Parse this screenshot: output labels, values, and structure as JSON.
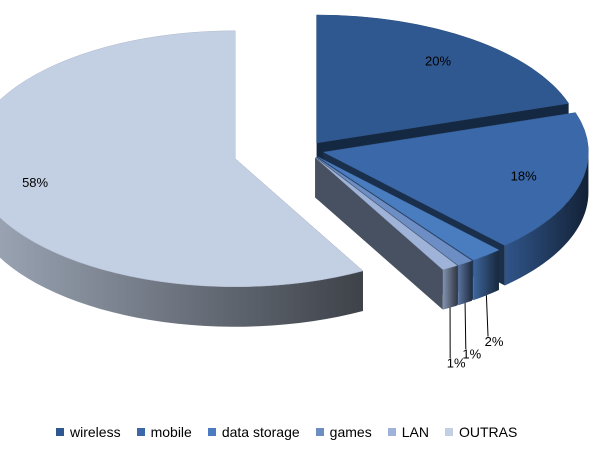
{
  "chart_data": {
    "type": "pie",
    "title": "",
    "style": "3d-exploded",
    "legend_position": "bottom",
    "categories": [
      "wireless",
      "mobile",
      "data storage",
      "games",
      "LAN",
      "OUTRAS"
    ],
    "values": [
      20,
      18,
      2,
      1,
      1,
      58
    ],
    "labels": [
      "20%",
      "18%",
      "2%",
      "1%",
      "1%",
      "58%"
    ],
    "colors": [
      "#2f5890",
      "#3a68a8",
      "#4a7cc0",
      "#6d8ec4",
      "#9fb3d8",
      "#c3cfe3"
    ]
  }
}
